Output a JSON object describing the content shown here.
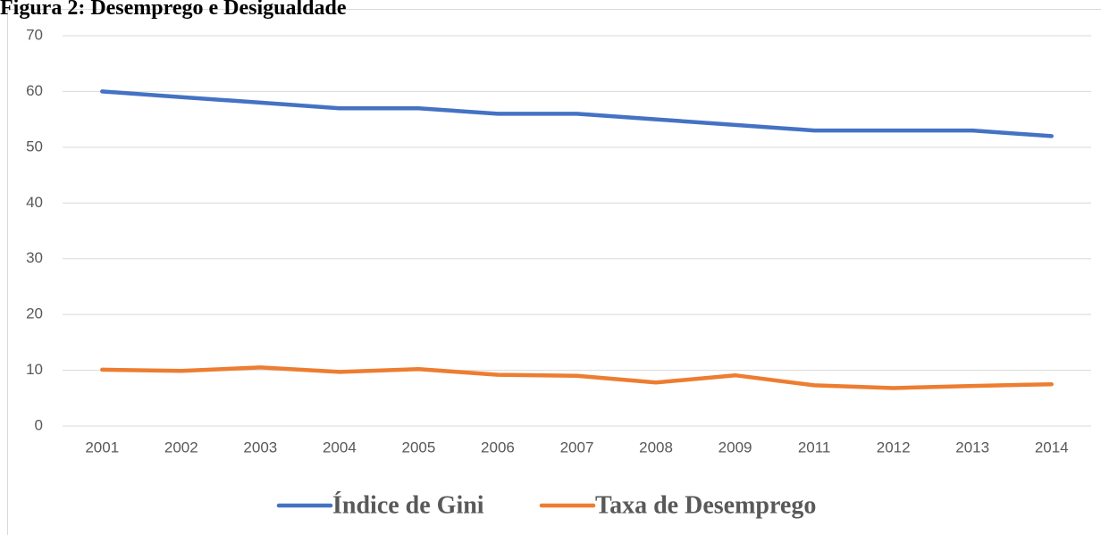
{
  "chart_data": {
    "type": "line",
    "title": "Figura 2: Desemprego e Desigualdade",
    "categories": [
      "2001",
      "2002",
      "2003",
      "2004",
      "2005",
      "2006",
      "2007",
      "2008",
      "2009",
      "2011",
      "2012",
      "2013",
      "2014"
    ],
    "series": [
      {
        "name": "Índice de Gini",
        "color": "#4472c4",
        "values": [
          60,
          59,
          58,
          57,
          57,
          56,
          56,
          55,
          54,
          53,
          53,
          53,
          52
        ]
      },
      {
        "name": "Taxa de Desemprego",
        "color": "#ed7d31",
        "values": [
          10.1,
          9.9,
          10.5,
          9.7,
          10.2,
          9.2,
          9.0,
          7.8,
          9.1,
          7.3,
          6.8,
          7.2,
          7.5
        ]
      }
    ],
    "ylim": [
      0,
      70
    ],
    "yticks": [
      0,
      10,
      20,
      30,
      40,
      50,
      60,
      70
    ],
    "grid": true,
    "legend": "bottom"
  }
}
